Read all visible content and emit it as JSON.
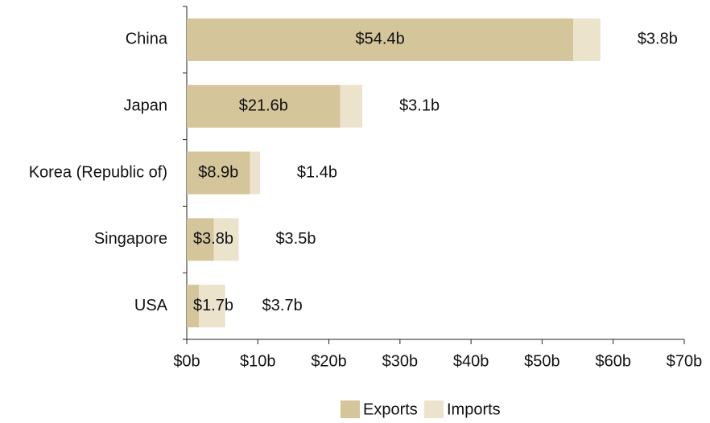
{
  "chart_data": {
    "type": "stacked-barh",
    "categories": [
      "China",
      "Japan",
      "Korea (Republic of)",
      "Singapore",
      "USA"
    ],
    "series": [
      {
        "name": "Exports",
        "color": "#d5c59b",
        "values": [
          54.4,
          21.6,
          8.9,
          3.8,
          1.7
        ],
        "value_labels": [
          "$54.4b",
          "$21.6b",
          "$8.9b",
          "$3.8b",
          "$1.7b"
        ]
      },
      {
        "name": "Imports",
        "color": "#ebe3cc",
        "values": [
          3.8,
          3.1,
          1.4,
          3.5,
          3.7
        ],
        "value_labels": [
          "$3.8b",
          "$3.1b",
          "$1.4b",
          "$3.5b",
          "$3.7b"
        ]
      }
    ],
    "xlim": [
      0,
      70
    ],
    "xticks": [
      {
        "value": 0,
        "label": "$0b"
      },
      {
        "value": 10,
        "label": "$10b"
      },
      {
        "value": 20,
        "label": "$20b"
      },
      {
        "value": 30,
        "label": "$30b"
      },
      {
        "value": 40,
        "label": "$40b"
      },
      {
        "value": 50,
        "label": "$50b"
      },
      {
        "value": 60,
        "label": "$60b"
      },
      {
        "value": 70,
        "label": "$70b"
      }
    ],
    "legend": "bottom"
  }
}
